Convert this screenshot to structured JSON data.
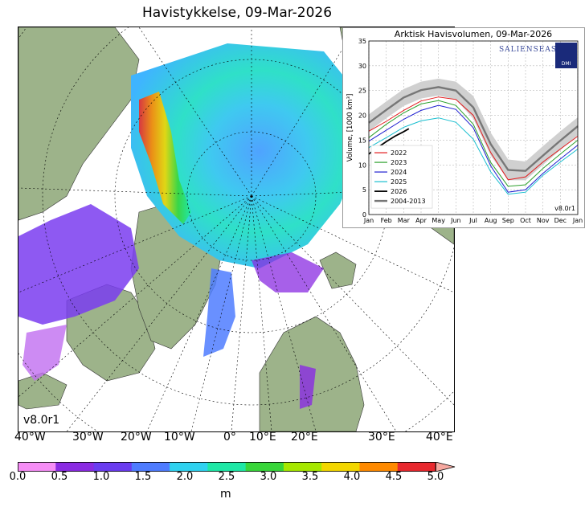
{
  "title": "Havistykkelse, 09-Mar-2026",
  "map": {
    "version": "v8.0r1",
    "lon_labels": [
      "40°W",
      "30°W",
      "20°W",
      "10°W",
      "0°",
      "10°E",
      "20°E",
      "30°E",
      "40°E"
    ]
  },
  "colorbar": {
    "ticks": [
      "0.0",
      "0.5",
      "1.0",
      "1.5",
      "2.0",
      "2.5",
      "3.0",
      "3.5",
      "4.0",
      "4.5",
      "5.0"
    ],
    "unit": "m",
    "colors": [
      "#f58df5",
      "#8a2be2",
      "#6a3cf0",
      "#4f7cff",
      "#2fd2f0",
      "#1ee8a6",
      "#38d63a",
      "#a6e800",
      "#f3d700",
      "#ff8a00",
      "#e8282e",
      "#f6a8a0"
    ]
  },
  "chart_data": {
    "type": "line",
    "title": "Arktisk Havisvolumen, 09-Mar-2026",
    "xlabel": "",
    "ylabel": "Volume, [1000 km³]",
    "ylim": [
      0,
      35
    ],
    "yticks": [
      "0",
      "5",
      "10",
      "15",
      "20",
      "25",
      "30",
      "35"
    ],
    "categories": [
      "Jan",
      "Feb",
      "Mar",
      "Apr",
      "May",
      "Jun",
      "Jul",
      "Aug",
      "Sep",
      "Oct",
      "Nov",
      "Dec",
      "Jan"
    ],
    "grid": true,
    "legend_position": "bottom-left",
    "logo_text": "SALIENSEAS",
    "logo_badge": "DMI",
    "version": "v8.0r1",
    "series": [
      {
        "name": "2022",
        "color": "#e31a1c",
        "x": [
          0,
          1,
          2,
          3,
          4,
          5,
          6,
          7,
          8,
          9,
          10,
          11,
          12
        ],
        "values": [
          16.8,
          18.8,
          21.0,
          22.9,
          23.7,
          23.2,
          20.0,
          12.5,
          7.0,
          7.6,
          10.6,
          13.2,
          15.8
        ]
      },
      {
        "name": "2023",
        "color": "#2ca02c",
        "x": [
          0,
          1,
          2,
          3,
          4,
          5,
          6,
          7,
          8,
          9,
          10,
          11,
          12
        ],
        "values": [
          15.5,
          18.2,
          20.5,
          22.3,
          23.0,
          22.0,
          18.2,
          10.5,
          5.7,
          6.0,
          9.3,
          12.2,
          15.0
        ]
      },
      {
        "name": "2024",
        "color": "#1f1fd0",
        "x": [
          0,
          1,
          2,
          3,
          4,
          5,
          6,
          7,
          8,
          9,
          10,
          11,
          12
        ],
        "values": [
          14.8,
          17.0,
          19.2,
          21.0,
          22.0,
          21.2,
          17.5,
          9.8,
          4.5,
          5.0,
          8.3,
          11.2,
          14.0
        ]
      },
      {
        "name": "2025",
        "color": "#17becf",
        "x": [
          0,
          1,
          2,
          3,
          4,
          5,
          6,
          7,
          8,
          9,
          10,
          11,
          12
        ],
        "values": [
          13.5,
          15.5,
          17.6,
          18.9,
          19.5,
          18.6,
          15.2,
          8.6,
          4.1,
          4.5,
          7.9,
          10.6,
          13.2
        ]
      },
      {
        "name": "2026",
        "color": "#000000",
        "x": [
          0,
          0.5,
          1,
          1.5,
          2,
          2.3
        ],
        "values": [
          12.2,
          13.5,
          14.7,
          15.8,
          16.7,
          17.3
        ]
      },
      {
        "name": "2004-2013",
        "color": "#777777",
        "x": [
          0,
          1,
          2,
          3,
          4,
          5,
          6,
          7,
          8,
          9,
          10,
          11,
          12
        ],
        "values": [
          18.5,
          21.1,
          23.6,
          25.1,
          25.7,
          25.0,
          21.6,
          14.2,
          9.0,
          8.8,
          11.9,
          14.9,
          17.8
        ],
        "band_low": [
          16.8,
          19.4,
          21.9,
          23.4,
          24.0,
          23.2,
          19.3,
          11.9,
          6.9,
          6.9,
          10.0,
          13.0,
          16.0
        ],
        "band_high": [
          20.2,
          22.8,
          25.3,
          26.8,
          27.4,
          26.8,
          23.9,
          16.5,
          11.1,
          10.7,
          13.8,
          16.8,
          19.6
        ]
      }
    ]
  }
}
